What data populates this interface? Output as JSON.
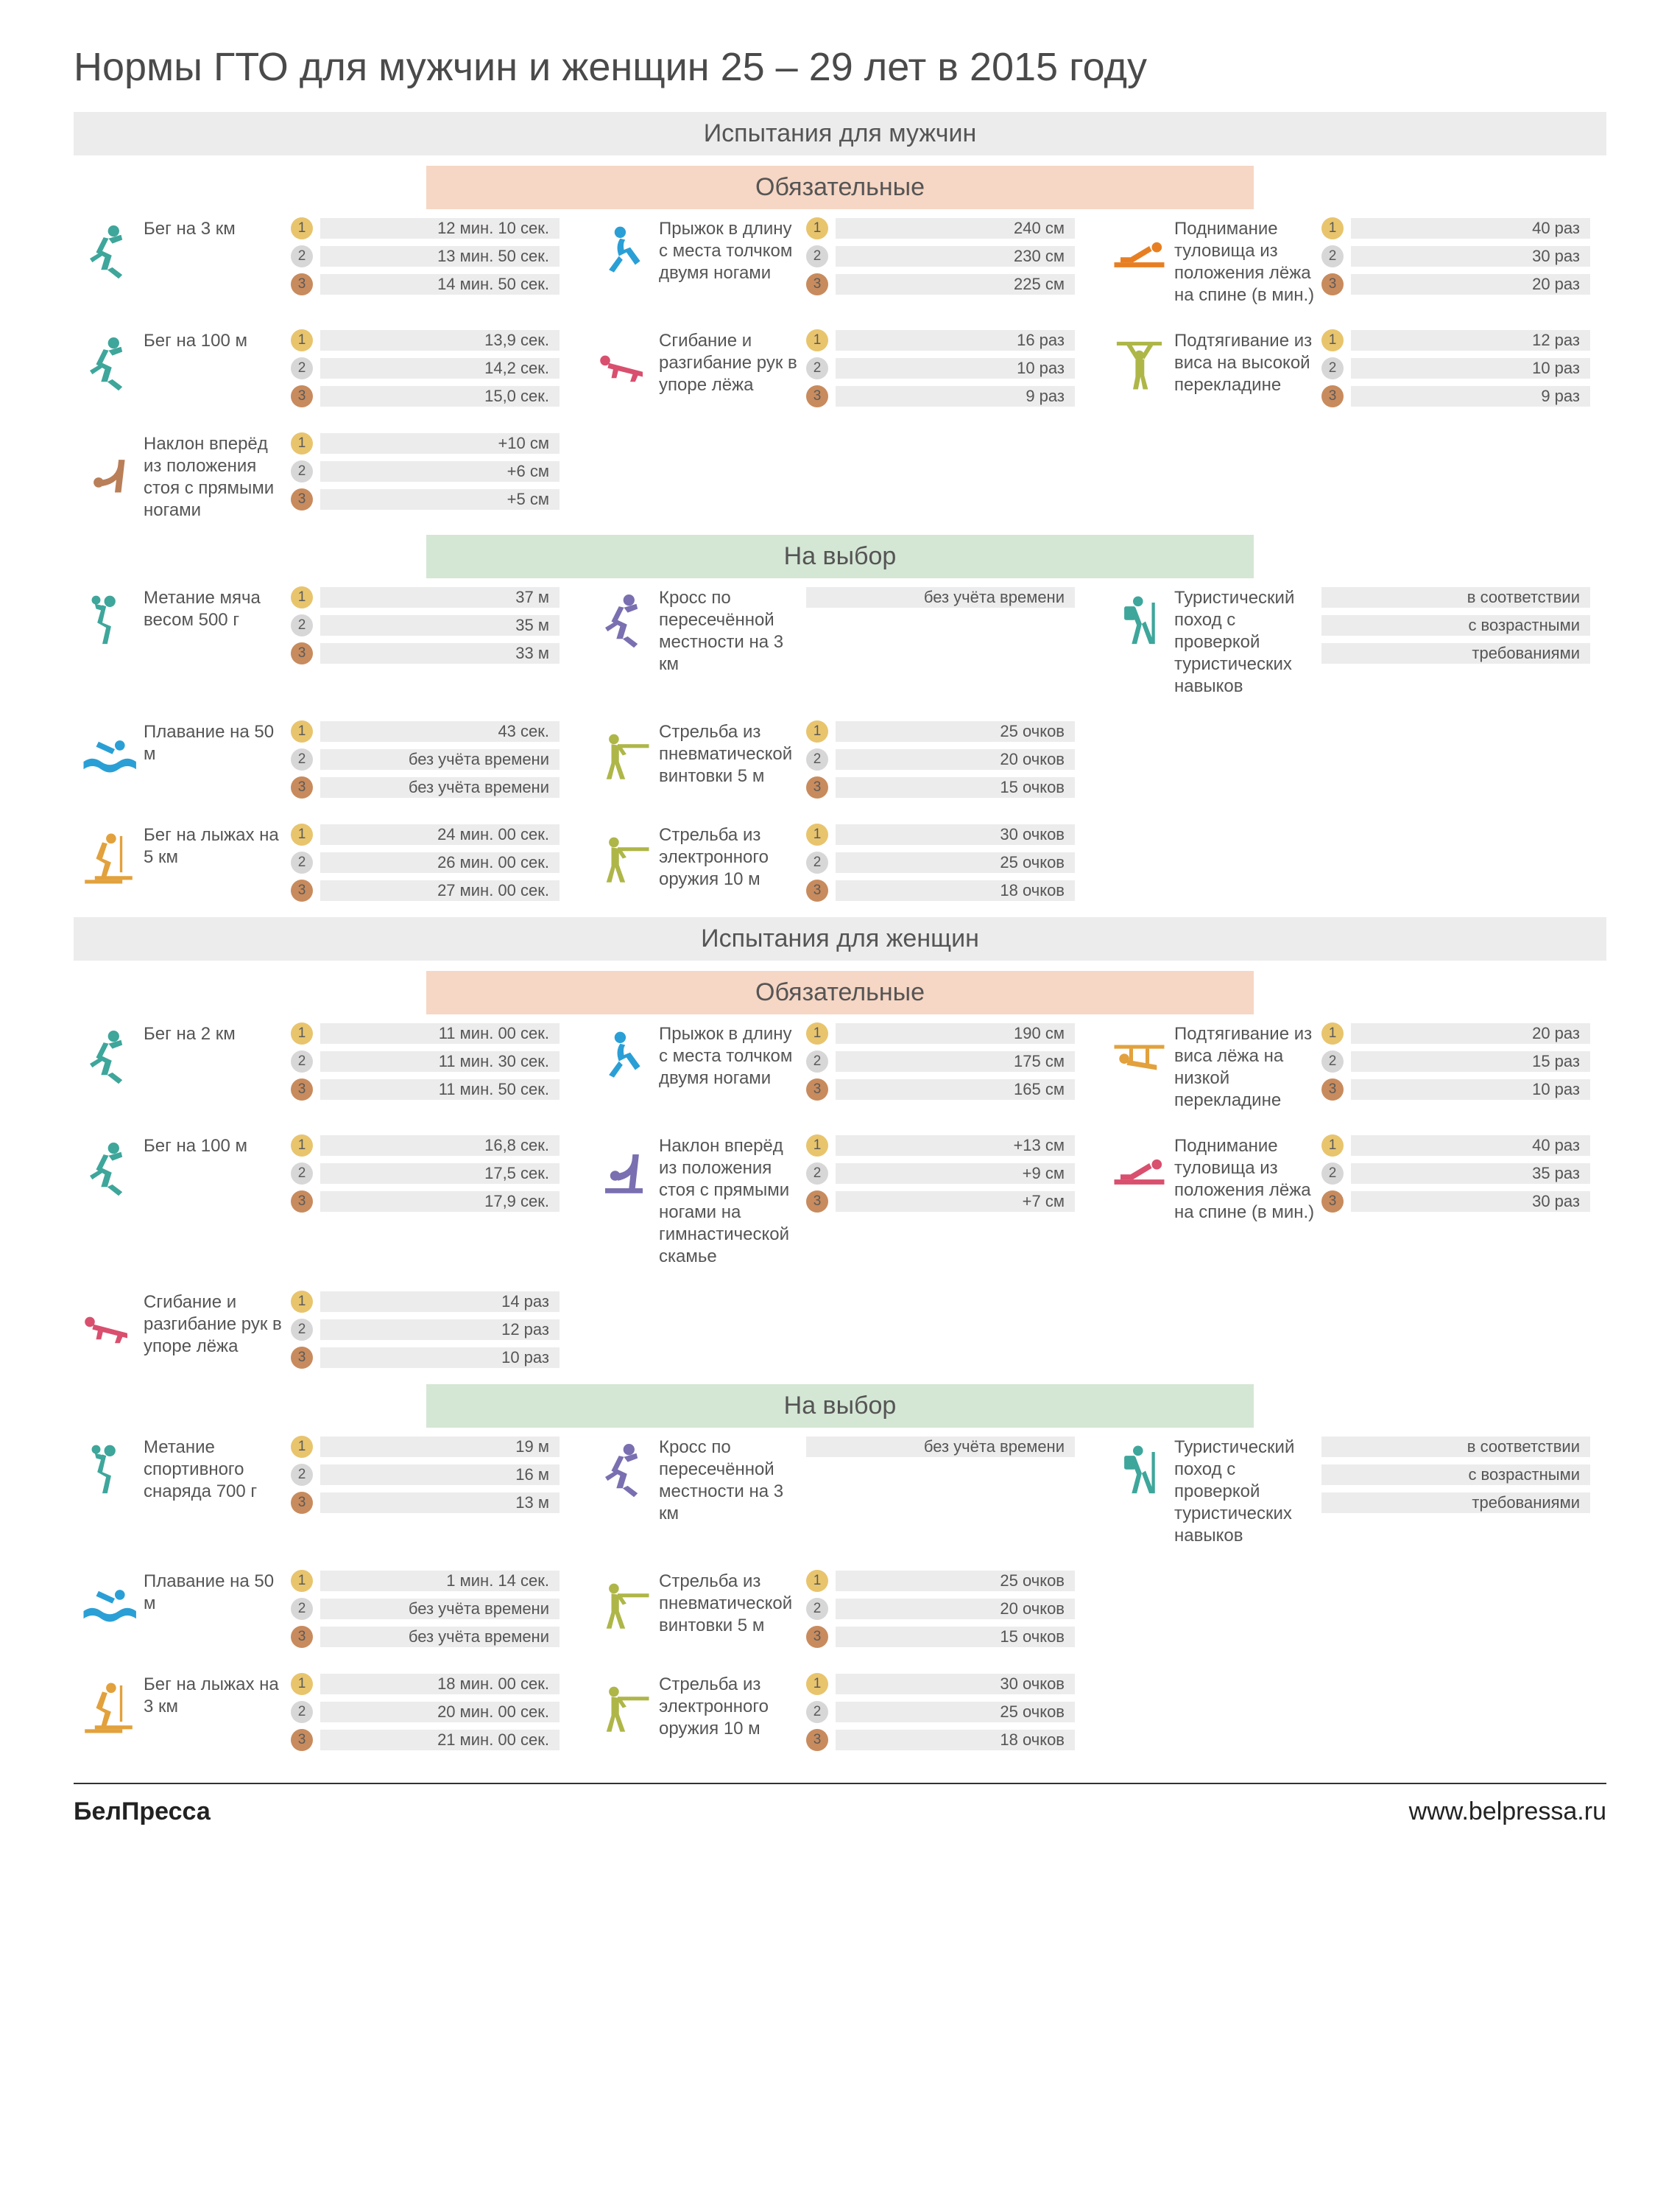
{
  "page_title": "Нормы ГТО  для мужчин  и женщин 25 – 29 лет в 2015 году",
  "footer_brand": "БелПресса",
  "footer_url": "www.belpressa.ru",
  "colors": {
    "gender_bg": "#ececec",
    "mandatory_bg": "#f6d6c4",
    "choice_bg": "#d4e6d4",
    "gold": "#e8c46d",
    "silver": "#d7d7d7",
    "bronze": "#c88b5d"
  },
  "medal_labels": [
    "1",
    "2",
    "3"
  ],
  "headers": {
    "men": "Испытания для мужчин",
    "women": "Испытания для женщин",
    "mandatory": "Обязательные",
    "choice": "На выбор"
  },
  "sections": [
    {
      "type": "gender",
      "key": "men"
    },
    {
      "type": "mandatory",
      "cards": [
        {
          "id": "run3km",
          "icon": "runner",
          "color": "#3ea69b",
          "label": "Бег на 3 км",
          "values": [
            "12 мин. 10 сек.",
            "13 мин. 50 сек.",
            "14 мин. 50 сек."
          ]
        },
        {
          "id": "longjump",
          "icon": "jumper",
          "color": "#2a9fd6",
          "label": "Прыжок в длину с места толчком двумя ногами",
          "values": [
            "240 см",
            "230 см",
            "225 см"
          ]
        },
        {
          "id": "situp",
          "icon": "situp",
          "color": "#e77f22",
          "label": "Поднимание туловища из положения лёжа на спине (в мин.)",
          "values": [
            "40 раз",
            "30 раз",
            "20 раз"
          ]
        },
        {
          "id": "run100m",
          "icon": "runner",
          "color": "#3ea69b",
          "label": "Бег на 100 м",
          "values": [
            "13,9 сек.",
            "14,2 сек.",
            "15,0 сек."
          ]
        },
        {
          "id": "pushup",
          "icon": "pushup",
          "color": "#d94f6e",
          "label": "Сгибание и разгибание рук в упоре лёжа",
          "values": [
            "16 раз",
            "10 раз",
            "9 раз"
          ]
        },
        {
          "id": "pullup",
          "icon": "pullup",
          "color": "#aeb648",
          "label": "Подтягивание из виса на высокой перекладине",
          "values": [
            "12 раз",
            "10 раз",
            "9 раз"
          ]
        },
        {
          "id": "bend",
          "icon": "bend",
          "color": "#b97f58",
          "label": "Наклон вперёд из положения стоя с прямыми ногами",
          "values": [
            "+10 см",
            "+6 см",
            "+5 см"
          ]
        }
      ]
    },
    {
      "type": "choice",
      "cards": [
        {
          "id": "throw",
          "icon": "throw",
          "color": "#3ea69b",
          "label": "Метание мяча весом 500 г",
          "values": [
            "37 м",
            "35 м",
            "33 м"
          ]
        },
        {
          "id": "cross",
          "icon": "runner",
          "color": "#7a6fb0",
          "label": "Кросс по пересечённой местности  на 3 км",
          "single": "без учёта времени"
        },
        {
          "id": "tourism",
          "icon": "hiker",
          "color": "#3ea69b",
          "label": "Туристический поход с проверкой туристических навыков",
          "single_multi": [
            "в соответствии",
            "с возрастными",
            "требованиями"
          ]
        },
        {
          "id": "swim",
          "icon": "swim",
          "color": "#2a9fd6",
          "label": "Плавание на 50 м",
          "values": [
            "43 сек.",
            "без учёта времени",
            "без учёта времени"
          ]
        },
        {
          "id": "shoot5",
          "icon": "shoot",
          "color": "#aeb648",
          "label": "Стрельба из пневматической винтовки  5 м",
          "values": [
            "25 очков",
            "20 очков",
            "15 очков"
          ]
        },
        {
          "id": "spacer1",
          "spacer": true
        },
        {
          "id": "ski",
          "icon": "ski",
          "color": "#e2a13c",
          "label": "Бег на лыжах на 5 км",
          "values": [
            "24 мин. 00 сек.",
            "26 мин. 00 сек.",
            "27 мин. 00 сек."
          ]
        },
        {
          "id": "shoot10",
          "icon": "shoot",
          "color": "#aeb648",
          "label": "Стрельба из электронного оружия 10 м",
          "values": [
            "30 очков",
            "25 очков",
            "18 очков"
          ]
        }
      ]
    },
    {
      "type": "gender",
      "key": "women"
    },
    {
      "type": "mandatory",
      "cards": [
        {
          "id": "run2km",
          "icon": "runner",
          "color": "#3ea69b",
          "label": "Бег на 2 км",
          "values": [
            "11 мин. 00 сек.",
            "11 мин. 30 сек.",
            "11 мин. 50 сек."
          ]
        },
        {
          "id": "longjump_w",
          "icon": "jumper",
          "color": "#2a9fd6",
          "label": "Прыжок в длину с места толчком двумя ногами",
          "values": [
            "190 см",
            "175 см",
            "165 см"
          ]
        },
        {
          "id": "lowpull",
          "icon": "lowpull",
          "color": "#e2a13c",
          "label": "Подтягивание из виса лёжа на низкой перекладине",
          "values": [
            "20 раз",
            "15 раз",
            "10 раз"
          ]
        },
        {
          "id": "run100m_w",
          "icon": "runner",
          "color": "#3ea69b",
          "label": "Бег на 100 м",
          "values": [
            "16,8 сек.",
            "17,5 сек.",
            "17,9 сек."
          ]
        },
        {
          "id": "bend_w",
          "icon": "bend2",
          "color": "#7a6fb0",
          "label": "Наклон вперёд из положения стоя с прямыми ногами на гимнастической скамье",
          "values": [
            "+13 см",
            "+9 см",
            "+7 см"
          ]
        },
        {
          "id": "situp_w",
          "icon": "situp",
          "color": "#d94f6e",
          "label": "Поднимание туловища из положения лёжа на спине (в мин.)",
          "values": [
            "40 раз",
            "35 раз",
            "30 раз"
          ]
        },
        {
          "id": "pushup_w",
          "icon": "pushup",
          "color": "#d94f6e",
          "label": "Сгибание и разгибание рук в упоре лёжа",
          "values": [
            "14 раз",
            "12 раз",
            "10 раз"
          ]
        }
      ]
    },
    {
      "type": "choice",
      "cards": [
        {
          "id": "throw_w",
          "icon": "throw",
          "color": "#3ea69b",
          "label": "Метание спортивного снаряда 700 г",
          "values": [
            "19 м",
            "16 м",
            "13 м"
          ]
        },
        {
          "id": "cross_w",
          "icon": "runner",
          "color": "#7a6fb0",
          "label": "Кросс по пересечённой местности на 3 км",
          "single": "без учёта времени"
        },
        {
          "id": "tourism_w",
          "icon": "hiker",
          "color": "#3ea69b",
          "label": "Туристический поход с проверкой туристических навыков",
          "single_multi": [
            "в соответствии",
            "с возрастными",
            "требованиями"
          ]
        },
        {
          "id": "swim_w",
          "icon": "swim",
          "color": "#2a9fd6",
          "label": "Плавание на 50 м",
          "values": [
            "1 мин. 14 сек.",
            "без учёта времени",
            "без учёта времени"
          ]
        },
        {
          "id": "shoot5_w",
          "icon": "shoot",
          "color": "#aeb648",
          "label": "Стрельба из пневматической винтовки  5 м",
          "values": [
            "25 очков",
            "20 очков",
            "15 очков"
          ]
        },
        {
          "id": "spacer2",
          "spacer": true
        },
        {
          "id": "ski_w",
          "icon": "ski",
          "color": "#e2a13c",
          "label": "Бег на лыжах на 3 км",
          "values": [
            "18 мин. 00 сек.",
            "20 мин. 00 сек.",
            "21 мин. 00 сек."
          ]
        },
        {
          "id": "shoot10_w",
          "icon": "shoot",
          "color": "#aeb648",
          "label": "Стрельба из электронного оружия 10 м",
          "values": [
            "30 очков",
            "25 очков",
            "18 очков"
          ]
        }
      ]
    }
  ]
}
